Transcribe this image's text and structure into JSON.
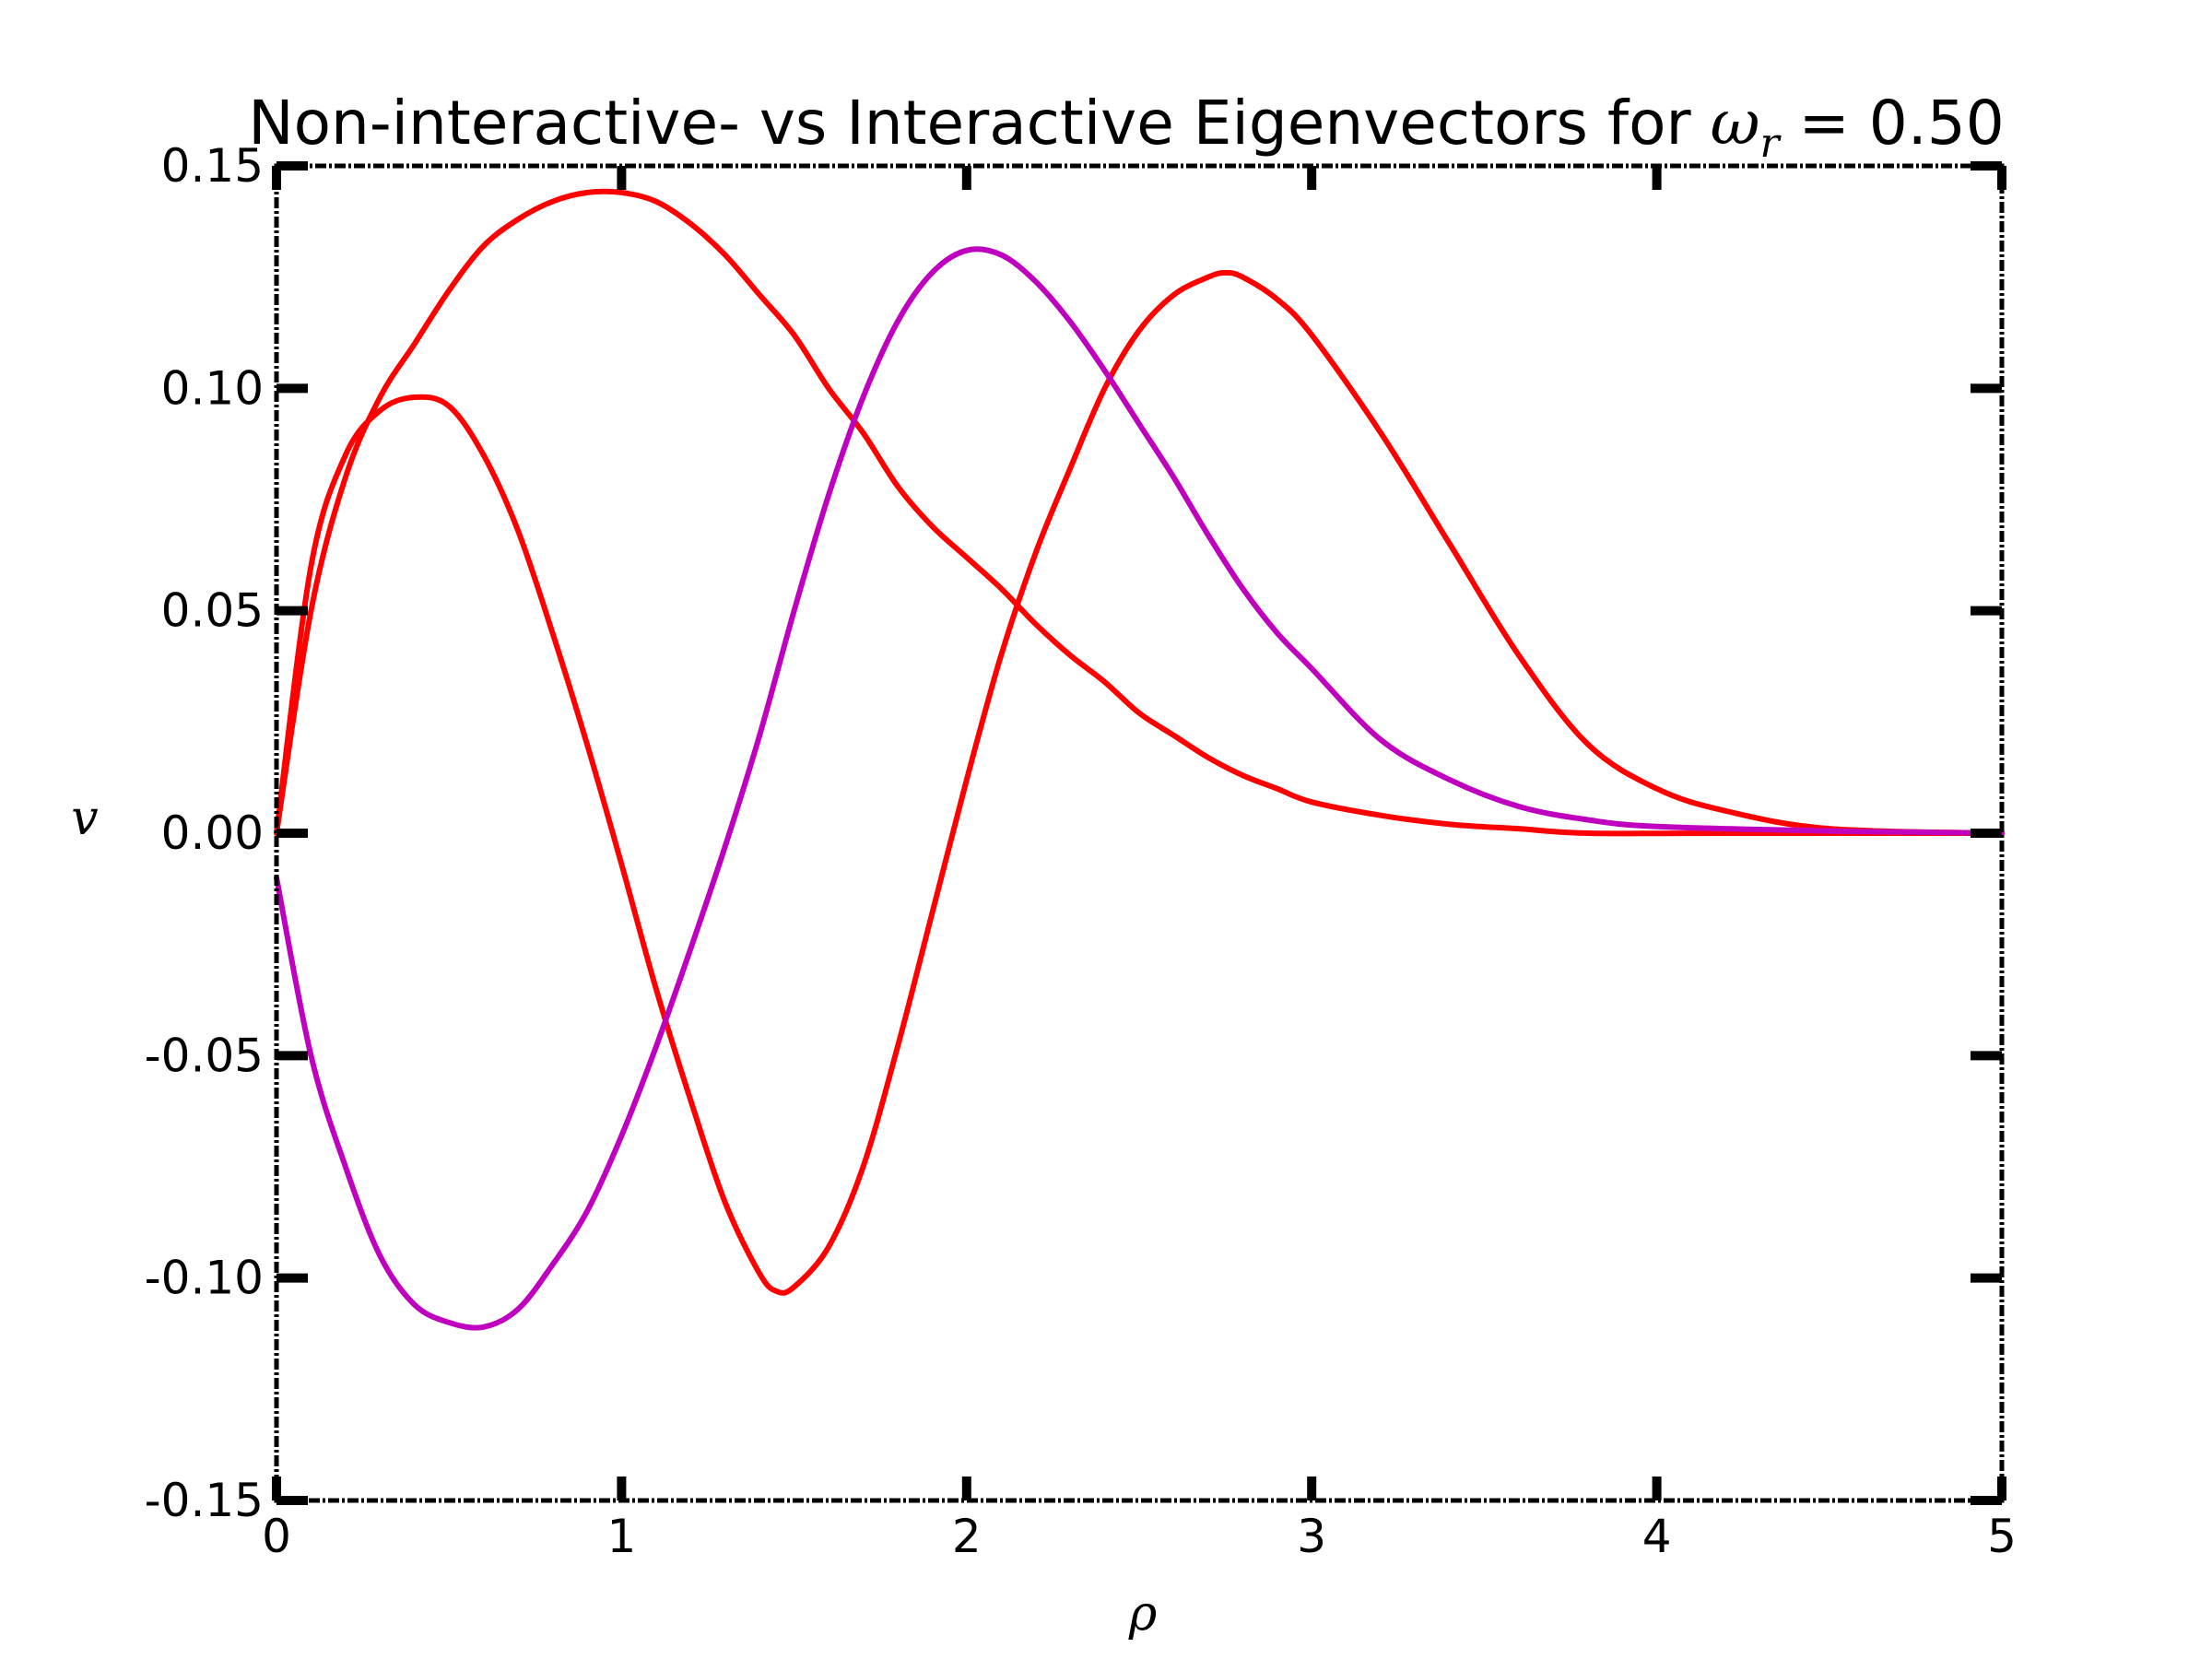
{
  "chart_data": {
    "type": "line",
    "title_prefix": "Non-interactive- vs Interactive Eigenvectors for ",
    "title_symbol": "ω",
    "title_subscript": "r",
    "title_suffix": " = 0.50",
    "xlabel": "ρ",
    "ylabel": "v",
    "xlim": [
      0,
      5
    ],
    "ylim": [
      -0.15,
      0.15
    ],
    "xticks": [
      0,
      1,
      2,
      3,
      4,
      5
    ],
    "xtick_labels": [
      "0",
      "1",
      "2",
      "3",
      "4",
      "5"
    ],
    "yticks": [
      -0.15,
      -0.1,
      -0.05,
      0.0,
      0.05,
      0.1,
      0.15
    ],
    "ytick_labels": [
      "-0.15",
      "-0.10",
      "-0.05",
      "0.00",
      "0.05",
      "0.10",
      "0.15"
    ],
    "grid": false,
    "legend": false,
    "series": [
      {
        "color": "#ff0000",
        "points": [
          [
            0,
            0
          ],
          [
            0.1,
            0.05
          ],
          [
            0.2,
            0.08
          ],
          [
            0.3,
            0.098
          ],
          [
            0.4,
            0.11
          ],
          [
            0.5,
            0.122
          ],
          [
            0.6,
            0.132
          ],
          [
            0.7,
            0.138
          ],
          [
            0.8,
            0.142
          ],
          [
            0.9,
            0.144
          ],
          [
            1.0,
            0.144
          ],
          [
            1.1,
            0.142
          ],
          [
            1.2,
            0.137
          ],
          [
            1.3,
            0.13
          ],
          [
            1.4,
            0.121
          ],
          [
            1.5,
            0.112
          ],
          [
            1.6,
            0.1
          ],
          [
            1.7,
            0.09
          ],
          [
            1.8,
            0.078
          ],
          [
            1.9,
            0.069
          ],
          [
            2.0,
            0.062
          ],
          [
            2.1,
            0.055
          ],
          [
            2.2,
            0.047
          ],
          [
            2.3,
            0.04
          ],
          [
            2.4,
            0.034
          ],
          [
            2.5,
            0.027
          ],
          [
            2.6,
            0.022
          ],
          [
            2.7,
            0.017
          ],
          [
            2.8,
            0.013
          ],
          [
            2.9,
            0.01
          ],
          [
            3.0,
            0.007
          ],
          [
            3.2,
            0.004
          ],
          [
            3.4,
            0.002
          ],
          [
            3.6,
            0.001
          ],
          [
            3.8,
            0.0
          ],
          [
            4.2,
            0.0
          ],
          [
            5.0,
            0.0
          ]
        ]
      },
      {
        "color": "#ff0000",
        "points": [
          [
            0,
            0
          ],
          [
            0.1,
            0.06
          ],
          [
            0.2,
            0.085
          ],
          [
            0.3,
            0.095
          ],
          [
            0.4,
            0.098
          ],
          [
            0.5,
            0.096
          ],
          [
            0.6,
            0.085
          ],
          [
            0.7,
            0.068
          ],
          [
            0.8,
            0.045
          ],
          [
            0.9,
            0.02
          ],
          [
            1.0,
            -0.007
          ],
          [
            1.1,
            -0.035
          ],
          [
            1.2,
            -0.06
          ],
          [
            1.3,
            -0.083
          ],
          [
            1.4,
            -0.099
          ],
          [
            1.45,
            -0.103
          ],
          [
            1.5,
            -0.102
          ],
          [
            1.6,
            -0.093
          ],
          [
            1.7,
            -0.075
          ],
          [
            1.8,
            -0.048
          ],
          [
            1.9,
            -0.018
          ],
          [
            2.0,
            0.012
          ],
          [
            2.1,
            0.04
          ],
          [
            2.2,
            0.063
          ],
          [
            2.3,
            0.082
          ],
          [
            2.4,
            0.1
          ],
          [
            2.5,
            0.113
          ],
          [
            2.6,
            0.121
          ],
          [
            2.7,
            0.125
          ],
          [
            2.75,
            0.126
          ],
          [
            2.8,
            0.125
          ],
          [
            2.9,
            0.12
          ],
          [
            3.0,
            0.112
          ],
          [
            3.2,
            0.09
          ],
          [
            3.4,
            0.065
          ],
          [
            3.6,
            0.04
          ],
          [
            3.8,
            0.02
          ],
          [
            4.0,
            0.01
          ],
          [
            4.2,
            0.005
          ],
          [
            4.5,
            0.001
          ],
          [
            5.0,
            0.0
          ]
        ]
      },
      {
        "color": "#bf00bf",
        "points": [
          [
            0,
            -0.01
          ],
          [
            0.1,
            -0.05
          ],
          [
            0.2,
            -0.075
          ],
          [
            0.3,
            -0.095
          ],
          [
            0.4,
            -0.106
          ],
          [
            0.5,
            -0.11
          ],
          [
            0.6,
            -0.111
          ],
          [
            0.7,
            -0.107
          ],
          [
            0.8,
            -0.097
          ],
          [
            0.9,
            -0.085
          ],
          [
            1.0,
            -0.068
          ],
          [
            1.1,
            -0.048
          ],
          [
            1.2,
            -0.026
          ],
          [
            1.3,
            -0.003
          ],
          [
            1.4,
            0.022
          ],
          [
            1.5,
            0.05
          ],
          [
            1.6,
            0.076
          ],
          [
            1.7,
            0.098
          ],
          [
            1.8,
            0.115
          ],
          [
            1.9,
            0.126
          ],
          [
            2.0,
            0.131
          ],
          [
            2.1,
            0.13
          ],
          [
            2.2,
            0.124
          ],
          [
            2.3,
            0.115
          ],
          [
            2.4,
            0.104
          ],
          [
            2.5,
            0.092
          ],
          [
            2.6,
            0.08
          ],
          [
            2.7,
            0.067
          ],
          [
            2.8,
            0.055
          ],
          [
            2.9,
            0.045
          ],
          [
            3.0,
            0.037
          ],
          [
            3.2,
            0.021
          ],
          [
            3.4,
            0.012
          ],
          [
            3.6,
            0.006
          ],
          [
            3.8,
            0.003
          ],
          [
            4.0,
            0.0015
          ],
          [
            4.5,
            0.0005
          ],
          [
            5.0,
            0.0
          ]
        ]
      }
    ]
  }
}
